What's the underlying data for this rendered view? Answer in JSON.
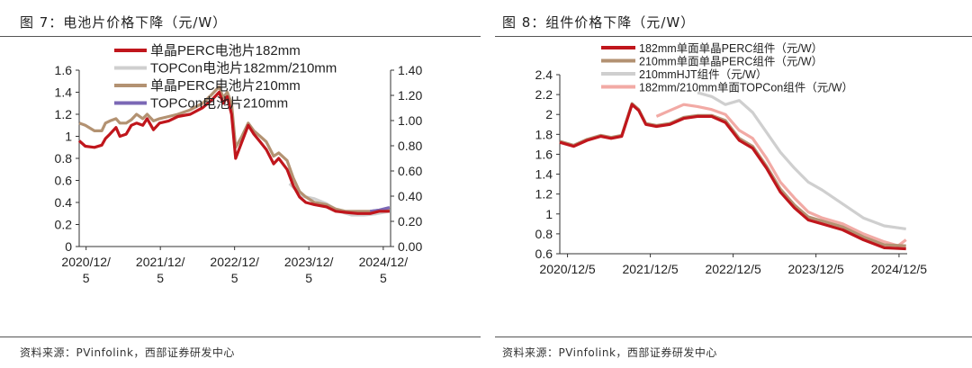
{
  "left": {
    "title": "图 7：电池片价格下降（元/W）",
    "source": "资料来源：PVinfolink，西部证券研发中心"
  },
  "right": {
    "title": "图 8：组件价格下降（元/W）",
    "source": "资料来源：PVinfolink，西部证券研发中心"
  },
  "chart_data": [
    {
      "type": "line",
      "title": "图 7：电池片价格下降（元/W）",
      "x_ticks": [
        "2020/12/\n5",
        "2021/12/\n5",
        "2022/12/\n5",
        "2023/12/\n5",
        "2024/12/\n5"
      ],
      "x_range": [
        "2020-11-01",
        "2025-01-10"
      ],
      "ylim_left": [
        0,
        1.6
      ],
      "yticks_left": [
        "0",
        "0.2",
        "0.4",
        "0.6",
        "0.8",
        "1",
        "1.2",
        "1.4",
        "1.6"
      ],
      "ylim_right": [
        0,
        1.4
      ],
      "yticks_right": [
        "0.00",
        "0.20",
        "0.40",
        "0.60",
        "0.80",
        "1.00",
        "1.20",
        "1.40"
      ],
      "legend_position": "top-left",
      "series": [
        {
          "name": "单晶PERC电池片182mm",
          "axis": "left",
          "color": "#c0161c",
          "points": [
            [
              "2020-11-01",
              0.96
            ],
            [
              "2020-12-01",
              0.91
            ],
            [
              "2021-01-15",
              0.9
            ],
            [
              "2021-02-20",
              0.92
            ],
            [
              "2021-03-10",
              0.98
            ],
            [
              "2021-04-01",
              1.02
            ],
            [
              "2021-05-01",
              1.08
            ],
            [
              "2021-05-20",
              1.0
            ],
            [
              "2021-06-20",
              1.02
            ],
            [
              "2021-07-15",
              1.1
            ],
            [
              "2021-08-10",
              1.12
            ],
            [
              "2021-09-10",
              1.1
            ],
            [
              "2021-10-01",
              1.16
            ],
            [
              "2021-11-01",
              1.06
            ],
            [
              "2021-12-01",
              1.12
            ],
            [
              "2022-01-15",
              1.14
            ],
            [
              "2022-03-01",
              1.18
            ],
            [
              "2022-05-01",
              1.2
            ],
            [
              "2022-07-01",
              1.26
            ],
            [
              "2022-08-15",
              1.33
            ],
            [
              "2022-09-20",
              1.4
            ],
            [
              "2022-10-10",
              1.3
            ],
            [
              "2022-10-30",
              1.36
            ],
            [
              "2022-11-20",
              1.2
            ],
            [
              "2022-12-10",
              0.8
            ],
            [
              "2023-01-10",
              0.95
            ],
            [
              "2023-02-10",
              1.1
            ],
            [
              "2023-03-10",
              1.02
            ],
            [
              "2023-04-10",
              0.95
            ],
            [
              "2023-05-10",
              0.88
            ],
            [
              "2023-06-15",
              0.75
            ],
            [
              "2023-07-10",
              0.8
            ],
            [
              "2023-08-20",
              0.7
            ],
            [
              "2023-09-20",
              0.55
            ],
            [
              "2023-10-20",
              0.45
            ],
            [
              "2023-11-20",
              0.4
            ],
            [
              "2024-01-01",
              0.38
            ],
            [
              "2024-03-01",
              0.36
            ],
            [
              "2024-04-15",
              0.32
            ],
            [
              "2024-06-01",
              0.31
            ],
            [
              "2024-08-01",
              0.3
            ],
            [
              "2024-10-01",
              0.3
            ],
            [
              "2024-11-15",
              0.32
            ],
            [
              "2025-01-05",
              0.32
            ]
          ]
        },
        {
          "name": "TOPCon电池片182mm/210mm",
          "axis": "right",
          "color": "#cfcfcf",
          "points": [
            [
              "2023-09-01",
              0.5
            ],
            [
              "2023-11-01",
              0.4
            ],
            [
              "2024-01-01",
              0.38
            ],
            [
              "2024-03-01",
              0.34
            ],
            [
              "2024-05-01",
              0.28
            ],
            [
              "2024-07-01",
              0.25
            ],
            [
              "2024-09-01",
              0.25
            ],
            [
              "2024-11-01",
              0.26
            ],
            [
              "2025-01-05",
              0.28
            ]
          ]
        },
        {
          "name": "单晶PERC电池片210mm",
          "axis": "left",
          "color": "#b39272",
          "points": [
            [
              "2020-11-01",
              1.12
            ],
            [
              "2020-12-01",
              1.1
            ],
            [
              "2021-01-15",
              1.05
            ],
            [
              "2021-02-20",
              1.05
            ],
            [
              "2021-03-10",
              1.12
            ],
            [
              "2021-04-01",
              1.14
            ],
            [
              "2021-05-01",
              1.16
            ],
            [
              "2021-05-20",
              1.12
            ],
            [
              "2021-06-20",
              1.12
            ],
            [
              "2021-07-15",
              1.15
            ],
            [
              "2021-08-10",
              1.2
            ],
            [
              "2021-09-10",
              1.16
            ],
            [
              "2021-10-01",
              1.2
            ],
            [
              "2021-11-01",
              1.14
            ],
            [
              "2021-12-01",
              1.16
            ],
            [
              "2022-01-15",
              1.18
            ],
            [
              "2022-03-01",
              1.2
            ],
            [
              "2022-05-01",
              1.24
            ],
            [
              "2022-07-01",
              1.3
            ],
            [
              "2022-08-15",
              1.38
            ],
            [
              "2022-09-20",
              1.45
            ],
            [
              "2022-10-10",
              1.35
            ],
            [
              "2022-10-30",
              1.4
            ],
            [
              "2022-11-20",
              1.3
            ],
            [
              "2022-12-10",
              0.9
            ],
            [
              "2023-01-10",
              1.0
            ],
            [
              "2023-02-10",
              1.12
            ],
            [
              "2023-03-10",
              1.05
            ],
            [
              "2023-04-10",
              1.0
            ],
            [
              "2023-05-10",
              0.95
            ],
            [
              "2023-06-15",
              0.82
            ],
            [
              "2023-07-10",
              0.85
            ],
            [
              "2023-08-20",
              0.78
            ],
            [
              "2023-09-20",
              0.62
            ],
            [
              "2023-10-20",
              0.5
            ],
            [
              "2023-11-20",
              0.45
            ],
            [
              "2024-01-01",
              0.4
            ],
            [
              "2024-03-01",
              0.38
            ],
            [
              "2024-04-15",
              0.34
            ],
            [
              "2024-06-01",
              0.32
            ],
            [
              "2024-08-01",
              0.32
            ],
            [
              "2024-10-01",
              0.32
            ],
            [
              "2024-11-15",
              0.33
            ],
            [
              "2025-01-05",
              0.33
            ]
          ]
        },
        {
          "name": "TOPCon电池片210mm",
          "axis": "right",
          "color": "#7b68b5",
          "points": [
            [
              "2024-10-01",
              0.28
            ],
            [
              "2024-11-15",
              0.29
            ],
            [
              "2025-01-05",
              0.31
            ]
          ]
        }
      ]
    },
    {
      "type": "line",
      "title": "图 8：组件价格下降（元/W）",
      "x_ticks": [
        "2020/12/5",
        "2021/12/5",
        "2022/12/5",
        "2023/12/5",
        "2024/12/5"
      ],
      "x_range": [
        "2020-11-01",
        "2025-01-10"
      ],
      "ylim": [
        0.6,
        2.4
      ],
      "yticks": [
        "0.6",
        "0.8",
        "1",
        "1.2",
        "1.4",
        "1.6",
        "1.8",
        "2",
        "2.2",
        "2.4"
      ],
      "legend_position": "top",
      "series": [
        {
          "name": "182mm单面单晶PERC组件（元/W）",
          "color": "#c0161c",
          "points": [
            [
              "2020-11-01",
              1.72
            ],
            [
              "2021-01-01",
              1.68
            ],
            [
              "2021-03-01",
              1.74
            ],
            [
              "2021-05-01",
              1.78
            ],
            [
              "2021-06-15",
              1.76
            ],
            [
              "2021-08-01",
              1.78
            ],
            [
              "2021-09-15",
              2.1
            ],
            [
              "2021-10-15",
              2.04
            ],
            [
              "2021-11-15",
              1.9
            ],
            [
              "2022-01-01",
              1.88
            ],
            [
              "2022-03-01",
              1.9
            ],
            [
              "2022-05-01",
              1.96
            ],
            [
              "2022-07-01",
              1.98
            ],
            [
              "2022-09-01",
              1.98
            ],
            [
              "2022-11-01",
              1.92
            ],
            [
              "2023-01-01",
              1.74
            ],
            [
              "2023-03-01",
              1.66
            ],
            [
              "2023-05-01",
              1.46
            ],
            [
              "2023-07-01",
              1.22
            ],
            [
              "2023-09-01",
              1.06
            ],
            [
              "2023-11-01",
              0.94
            ],
            [
              "2024-01-01",
              0.9
            ],
            [
              "2024-04-01",
              0.84
            ],
            [
              "2024-07-01",
              0.74
            ],
            [
              "2024-10-01",
              0.66
            ],
            [
              "2025-01-05",
              0.65
            ]
          ]
        },
        {
          "name": "210mm单面单晶PERC组件（元/W）",
          "color": "#b39272",
          "points": [
            [
              "2020-11-01",
              1.73
            ],
            [
              "2021-01-01",
              1.69
            ],
            [
              "2021-03-01",
              1.75
            ],
            [
              "2021-05-01",
              1.79
            ],
            [
              "2021-06-15",
              1.77
            ],
            [
              "2021-08-01",
              1.79
            ],
            [
              "2021-09-15",
              2.11
            ],
            [
              "2021-10-15",
              2.05
            ],
            [
              "2021-11-15",
              1.91
            ],
            [
              "2022-01-01",
              1.89
            ],
            [
              "2022-03-01",
              1.91
            ],
            [
              "2022-05-01",
              1.97
            ],
            [
              "2022-07-01",
              1.99
            ],
            [
              "2022-09-01",
              1.99
            ],
            [
              "2022-11-01",
              1.94
            ],
            [
              "2023-01-01",
              1.76
            ],
            [
              "2023-03-01",
              1.68
            ],
            [
              "2023-05-01",
              1.48
            ],
            [
              "2023-07-01",
              1.25
            ],
            [
              "2023-09-01",
              1.09
            ],
            [
              "2023-11-01",
              0.97
            ],
            [
              "2024-01-01",
              0.93
            ],
            [
              "2024-04-01",
              0.87
            ],
            [
              "2024-07-01",
              0.77
            ],
            [
              "2024-10-01",
              0.69
            ],
            [
              "2025-01-05",
              0.68
            ]
          ]
        },
        {
          "name": "210mmHJT组件（元/W）",
          "color": "#cfcfcf",
          "points": [
            [
              "2022-07-01",
              2.22
            ],
            [
              "2022-09-01",
              2.18
            ],
            [
              "2022-11-01",
              2.1
            ],
            [
              "2023-01-01",
              2.14
            ],
            [
              "2023-03-01",
              2.02
            ],
            [
              "2023-05-01",
              1.82
            ],
            [
              "2023-07-01",
              1.62
            ],
            [
              "2023-09-01",
              1.46
            ],
            [
              "2023-11-01",
              1.32
            ],
            [
              "2024-01-01",
              1.24
            ],
            [
              "2024-04-01",
              1.1
            ],
            [
              "2024-07-01",
              0.96
            ],
            [
              "2024-10-01",
              0.88
            ],
            [
              "2025-01-05",
              0.85
            ]
          ]
        },
        {
          "name": "182mm/210mm单面TOPCon组件（元/W）",
          "color": "#f2aaa5",
          "points": [
            [
              "2022-01-01",
              1.98
            ],
            [
              "2022-03-01",
              2.04
            ],
            [
              "2022-05-01",
              2.1
            ],
            [
              "2022-07-01",
              2.08
            ],
            [
              "2022-09-01",
              2.05
            ],
            [
              "2022-11-01",
              2.0
            ],
            [
              "2023-01-01",
              1.84
            ],
            [
              "2023-03-01",
              1.76
            ],
            [
              "2023-05-01",
              1.56
            ],
            [
              "2023-07-01",
              1.32
            ],
            [
              "2023-09-01",
              1.16
            ],
            [
              "2023-11-01",
              1.02
            ],
            [
              "2024-01-01",
              0.96
            ],
            [
              "2024-04-01",
              0.9
            ],
            [
              "2024-07-01",
              0.8
            ],
            [
              "2024-10-01",
              0.72
            ],
            [
              "2024-12-01",
              0.68
            ],
            [
              "2025-01-05",
              0.74
            ]
          ]
        }
      ]
    }
  ]
}
